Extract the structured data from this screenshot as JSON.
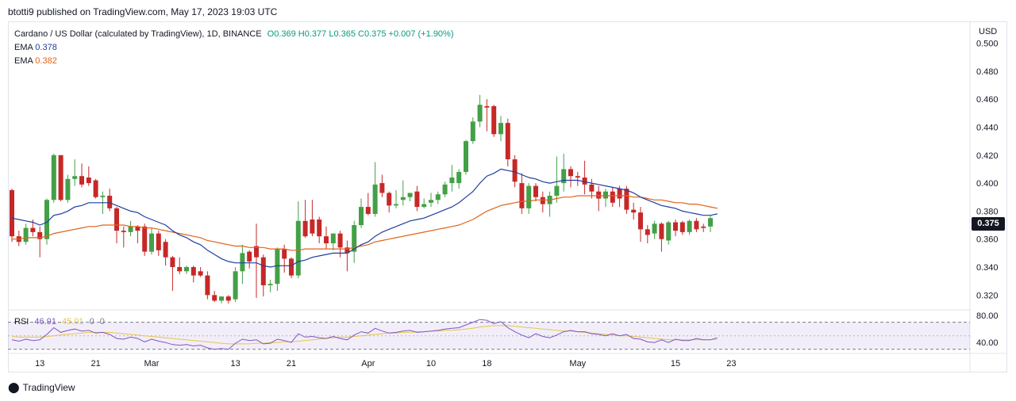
{
  "header": {
    "published": "btotti9 published on TradingView.com, May 17, 2023 19:03 UTC"
  },
  "legend": {
    "symbol": "Cardano / US Dollar (calculated by TradingView), 1D, BINANCE",
    "ohlc": "O0.369  H0.377  L0.365  C0.375  +0.007 (+1.90%)",
    "ema_fast_label": "EMA",
    "ema_fast_value": "0.378",
    "ema_slow_label": "EMA",
    "ema_slow_value": "0.382"
  },
  "rsi_legend": {
    "label": "RSI",
    "value": "46.91",
    "ma_value": "45.01",
    "zero1": "0",
    "zero2": "0"
  },
  "axis": {
    "currency": "USD",
    "last_price": "0.375"
  },
  "footer": {
    "brand": "TradingView"
  },
  "colors": {
    "up": "#26a69a",
    "up_body": "#43a047",
    "down": "#c62828",
    "ema_fast": "#1e3fa0",
    "ema_slow": "#e0641b",
    "rsi": "#7e57c2",
    "rsi_ma": "#e6c64a"
  },
  "chart_data": {
    "type": "candlestick",
    "title": "Cardano / US Dollar (calculated by TradingView), 1D, BINANCE",
    "ylim": [
      0.31,
      0.515
    ],
    "y_ticks": [
      "0.500",
      "0.480",
      "0.460",
      "0.440",
      "0.420",
      "0.400",
      "0.380",
      "0.360",
      "0.340",
      "0.320"
    ],
    "x_ticks": [
      {
        "label": "13",
        "index": 4
      },
      {
        "label": "21",
        "index": 12
      },
      {
        "label": "Mar",
        "index": 20
      },
      {
        "label": "13",
        "index": 32
      },
      {
        "label": "21",
        "index": 40
      },
      {
        "label": "Apr",
        "index": 51
      },
      {
        "label": "10",
        "index": 60
      },
      {
        "label": "18",
        "index": 68
      },
      {
        "label": "May",
        "index": 81
      },
      {
        "label": "15",
        "index": 95
      },
      {
        "label": "23",
        "index": 103
      }
    ],
    "candles": [
      {
        "o": 0.395,
        "h": 0.396,
        "l": 0.358,
        "c": 0.362
      },
      {
        "o": 0.362,
        "h": 0.366,
        "l": 0.355,
        "c": 0.358
      },
      {
        "o": 0.358,
        "h": 0.371,
        "l": 0.356,
        "c": 0.368
      },
      {
        "o": 0.368,
        "h": 0.374,
        "l": 0.362,
        "c": 0.365
      },
      {
        "o": 0.365,
        "h": 0.369,
        "l": 0.347,
        "c": 0.36
      },
      {
        "o": 0.36,
        "h": 0.389,
        "l": 0.356,
        "c": 0.388
      },
      {
        "o": 0.388,
        "h": 0.421,
        "l": 0.386,
        "c": 0.42
      },
      {
        "o": 0.42,
        "h": 0.42,
        "l": 0.387,
        "c": 0.388
      },
      {
        "o": 0.388,
        "h": 0.406,
        "l": 0.386,
        "c": 0.403
      },
      {
        "o": 0.403,
        "h": 0.417,
        "l": 0.398,
        "c": 0.405
      },
      {
        "o": 0.405,
        "h": 0.414,
        "l": 0.397,
        "c": 0.399
      },
      {
        "o": 0.404,
        "h": 0.412,
        "l": 0.398,
        "c": 0.4
      },
      {
        "o": 0.402,
        "h": 0.403,
        "l": 0.389,
        "c": 0.39
      },
      {
        "o": 0.39,
        "h": 0.394,
        "l": 0.378,
        "c": 0.391
      },
      {
        "o": 0.391,
        "h": 0.396,
        "l": 0.38,
        "c": 0.382
      },
      {
        "o": 0.382,
        "h": 0.383,
        "l": 0.357,
        "c": 0.366
      },
      {
        "o": 0.366,
        "h": 0.369,
        "l": 0.354,
        "c": 0.365
      },
      {
        "o": 0.365,
        "h": 0.373,
        "l": 0.362,
        "c": 0.369
      },
      {
        "o": 0.369,
        "h": 0.37,
        "l": 0.357,
        "c": 0.366
      },
      {
        "o": 0.369,
        "h": 0.371,
        "l": 0.348,
        "c": 0.351
      },
      {
        "o": 0.351,
        "h": 0.368,
        "l": 0.349,
        "c": 0.364
      },
      {
        "o": 0.364,
        "h": 0.366,
        "l": 0.348,
        "c": 0.352
      },
      {
        "o": 0.358,
        "h": 0.36,
        "l": 0.341,
        "c": 0.347
      },
      {
        "o": 0.347,
        "h": 0.348,
        "l": 0.323,
        "c": 0.34
      },
      {
        "o": 0.34,
        "h": 0.347,
        "l": 0.335,
        "c": 0.337
      },
      {
        "o": 0.337,
        "h": 0.341,
        "l": 0.335,
        "c": 0.34
      },
      {
        "o": 0.34,
        "h": 0.341,
        "l": 0.329,
        "c": 0.334
      },
      {
        "o": 0.337,
        "h": 0.34,
        "l": 0.333,
        "c": 0.334
      },
      {
        "o": 0.334,
        "h": 0.337,
        "l": 0.317,
        "c": 0.32
      },
      {
        "o": 0.32,
        "h": 0.323,
        "l": 0.315,
        "c": 0.316
      },
      {
        "o": 0.316,
        "h": 0.319,
        "l": 0.314,
        "c": 0.319
      },
      {
        "o": 0.319,
        "h": 0.32,
        "l": 0.314,
        "c": 0.316
      },
      {
        "o": 0.317,
        "h": 0.34,
        "l": 0.315,
        "c": 0.337
      },
      {
        "o": 0.337,
        "h": 0.356,
        "l": 0.328,
        "c": 0.35
      },
      {
        "o": 0.351,
        "h": 0.352,
        "l": 0.339,
        "c": 0.344
      },
      {
        "o": 0.355,
        "h": 0.371,
        "l": 0.318,
        "c": 0.347
      },
      {
        "o": 0.347,
        "h": 0.349,
        "l": 0.319,
        "c": 0.327
      },
      {
        "o": 0.327,
        "h": 0.331,
        "l": 0.322,
        "c": 0.328
      },
      {
        "o": 0.328,
        "h": 0.354,
        "l": 0.323,
        "c": 0.353
      },
      {
        "o": 0.353,
        "h": 0.356,
        "l": 0.336,
        "c": 0.346
      },
      {
        "o": 0.346,
        "h": 0.347,
        "l": 0.332,
        "c": 0.334
      },
      {
        "o": 0.334,
        "h": 0.387,
        "l": 0.332,
        "c": 0.373
      },
      {
        "o": 0.373,
        "h": 0.388,
        "l": 0.361,
        "c": 0.362
      },
      {
        "o": 0.374,
        "h": 0.388,
        "l": 0.362,
        "c": 0.364
      },
      {
        "o": 0.374,
        "h": 0.376,
        "l": 0.357,
        "c": 0.362
      },
      {
        "o": 0.362,
        "h": 0.369,
        "l": 0.353,
        "c": 0.357
      },
      {
        "o": 0.357,
        "h": 0.364,
        "l": 0.352,
        "c": 0.364
      },
      {
        "o": 0.364,
        "h": 0.366,
        "l": 0.347,
        "c": 0.354
      },
      {
        "o": 0.354,
        "h": 0.359,
        "l": 0.337,
        "c": 0.35
      },
      {
        "o": 0.351,
        "h": 0.373,
        "l": 0.343,
        "c": 0.37
      },
      {
        "o": 0.37,
        "h": 0.389,
        "l": 0.368,
        "c": 0.383
      },
      {
        "o": 0.383,
        "h": 0.393,
        "l": 0.377,
        "c": 0.378
      },
      {
        "o": 0.378,
        "h": 0.415,
        "l": 0.376,
        "c": 0.399
      },
      {
        "o": 0.4,
        "h": 0.406,
        "l": 0.39,
        "c": 0.393
      },
      {
        "o": 0.393,
        "h": 0.394,
        "l": 0.379,
        "c": 0.384
      },
      {
        "o": 0.384,
        "h": 0.395,
        "l": 0.382,
        "c": 0.385
      },
      {
        "o": 0.388,
        "h": 0.402,
        "l": 0.384,
        "c": 0.39
      },
      {
        "o": 0.39,
        "h": 0.393,
        "l": 0.387,
        "c": 0.393
      },
      {
        "o": 0.394,
        "h": 0.398,
        "l": 0.38,
        "c": 0.383
      },
      {
        "o": 0.383,
        "h": 0.389,
        "l": 0.382,
        "c": 0.385
      },
      {
        "o": 0.386,
        "h": 0.393,
        "l": 0.383,
        "c": 0.388
      },
      {
        "o": 0.388,
        "h": 0.394,
        "l": 0.385,
        "c": 0.392
      },
      {
        "o": 0.392,
        "h": 0.401,
        "l": 0.39,
        "c": 0.399
      },
      {
        "o": 0.4,
        "h": 0.413,
        "l": 0.394,
        "c": 0.404
      },
      {
        "o": 0.4,
        "h": 0.41,
        "l": 0.396,
        "c": 0.408
      },
      {
        "o": 0.408,
        "h": 0.431,
        "l": 0.406,
        "c": 0.43
      },
      {
        "o": 0.43,
        "h": 0.447,
        "l": 0.428,
        "c": 0.444
      },
      {
        "o": 0.444,
        "h": 0.463,
        "l": 0.44,
        "c": 0.456
      },
      {
        "o": 0.455,
        "h": 0.46,
        "l": 0.437,
        "c": 0.454
      },
      {
        "o": 0.455,
        "h": 0.456,
        "l": 0.433,
        "c": 0.435
      },
      {
        "o": 0.435,
        "h": 0.448,
        "l": 0.43,
        "c": 0.443
      },
      {
        "o": 0.443,
        "h": 0.446,
        "l": 0.412,
        "c": 0.417
      },
      {
        "o": 0.417,
        "h": 0.42,
        "l": 0.397,
        "c": 0.401
      },
      {
        "o": 0.4,
        "h": 0.407,
        "l": 0.378,
        "c": 0.382
      },
      {
        "o": 0.382,
        "h": 0.4,
        "l": 0.378,
        "c": 0.398
      },
      {
        "o": 0.398,
        "h": 0.4,
        "l": 0.387,
        "c": 0.39
      },
      {
        "o": 0.39,
        "h": 0.394,
        "l": 0.379,
        "c": 0.385
      },
      {
        "o": 0.385,
        "h": 0.394,
        "l": 0.376,
        "c": 0.391
      },
      {
        "o": 0.391,
        "h": 0.419,
        "l": 0.386,
        "c": 0.398
      },
      {
        "o": 0.4,
        "h": 0.421,
        "l": 0.394,
        "c": 0.41
      },
      {
        "o": 0.41,
        "h": 0.412,
        "l": 0.397,
        "c": 0.405
      },
      {
        "o": 0.405,
        "h": 0.408,
        "l": 0.398,
        "c": 0.404
      },
      {
        "o": 0.404,
        "h": 0.416,
        "l": 0.392,
        "c": 0.399
      },
      {
        "o": 0.399,
        "h": 0.403,
        "l": 0.389,
        "c": 0.394
      },
      {
        "o": 0.394,
        "h": 0.398,
        "l": 0.38,
        "c": 0.389
      },
      {
        "o": 0.389,
        "h": 0.396,
        "l": 0.383,
        "c": 0.394
      },
      {
        "o": 0.394,
        "h": 0.397,
        "l": 0.383,
        "c": 0.386
      },
      {
        "o": 0.396,
        "h": 0.398,
        "l": 0.383,
        "c": 0.389
      },
      {
        "o": 0.396,
        "h": 0.398,
        "l": 0.378,
        "c": 0.381
      },
      {
        "o": 0.381,
        "h": 0.386,
        "l": 0.374,
        "c": 0.379
      },
      {
        "o": 0.379,
        "h": 0.383,
        "l": 0.358,
        "c": 0.367
      },
      {
        "o": 0.367,
        "h": 0.37,
        "l": 0.357,
        "c": 0.363
      },
      {
        "o": 0.364,
        "h": 0.373,
        "l": 0.36,
        "c": 0.371
      },
      {
        "o": 0.371,
        "h": 0.372,
        "l": 0.351,
        "c": 0.36
      },
      {
        "o": 0.359,
        "h": 0.373,
        "l": 0.356,
        "c": 0.372
      },
      {
        "o": 0.372,
        "h": 0.374,
        "l": 0.362,
        "c": 0.366
      },
      {
        "o": 0.372,
        "h": 0.373,
        "l": 0.363,
        "c": 0.365
      },
      {
        "o": 0.365,
        "h": 0.374,
        "l": 0.363,
        "c": 0.373
      },
      {
        "o": 0.373,
        "h": 0.375,
        "l": 0.365,
        "c": 0.367
      },
      {
        "o": 0.369,
        "h": 0.371,
        "l": 0.365,
        "c": 0.368
      },
      {
        "o": 0.369,
        "h": 0.377,
        "l": 0.365,
        "c": 0.375
      }
    ],
    "ema_fast": [
      0.375,
      0.374,
      0.373,
      0.372,
      0.37,
      0.372,
      0.377,
      0.378,
      0.38,
      0.383,
      0.384,
      0.386,
      0.386,
      0.386,
      0.386,
      0.384,
      0.382,
      0.38,
      0.379,
      0.376,
      0.374,
      0.372,
      0.37,
      0.366,
      0.363,
      0.361,
      0.358,
      0.356,
      0.352,
      0.349,
      0.346,
      0.344,
      0.343,
      0.343,
      0.343,
      0.343,
      0.341,
      0.34,
      0.341,
      0.341,
      0.341,
      0.344,
      0.345,
      0.347,
      0.348,
      0.349,
      0.35,
      0.35,
      0.35,
      0.353,
      0.356,
      0.358,
      0.362,
      0.365,
      0.367,
      0.369,
      0.371,
      0.373,
      0.374,
      0.375,
      0.377,
      0.379,
      0.381,
      0.383,
      0.386,
      0.39,
      0.394,
      0.4,
      0.405,
      0.407,
      0.41,
      0.409,
      0.408,
      0.406,
      0.404,
      0.403,
      0.401,
      0.4,
      0.401,
      0.402,
      0.402,
      0.402,
      0.401,
      0.4,
      0.399,
      0.398,
      0.397,
      0.396,
      0.395,
      0.393,
      0.39,
      0.388,
      0.386,
      0.384,
      0.383,
      0.382,
      0.38,
      0.379,
      0.378,
      0.377,
      0.377,
      0.378
    ],
    "ema_slow": [
      0.36,
      0.36,
      0.361,
      0.361,
      0.361,
      0.362,
      0.364,
      0.365,
      0.366,
      0.367,
      0.368,
      0.369,
      0.369,
      0.37,
      0.37,
      0.37,
      0.37,
      0.369,
      0.369,
      0.368,
      0.368,
      0.367,
      0.366,
      0.365,
      0.364,
      0.363,
      0.362,
      0.361,
      0.359,
      0.358,
      0.357,
      0.356,
      0.355,
      0.355,
      0.354,
      0.354,
      0.354,
      0.353,
      0.353,
      0.353,
      0.352,
      0.352,
      0.353,
      0.353,
      0.353,
      0.353,
      0.353,
      0.353,
      0.353,
      0.354,
      0.355,
      0.356,
      0.358,
      0.359,
      0.36,
      0.361,
      0.362,
      0.363,
      0.364,
      0.365,
      0.366,
      0.367,
      0.368,
      0.369,
      0.37,
      0.372,
      0.374,
      0.377,
      0.38,
      0.382,
      0.384,
      0.385,
      0.386,
      0.387,
      0.387,
      0.388,
      0.388,
      0.388,
      0.389,
      0.39,
      0.39,
      0.391,
      0.391,
      0.391,
      0.391,
      0.391,
      0.391,
      0.391,
      0.391,
      0.39,
      0.39,
      0.389,
      0.388,
      0.388,
      0.387,
      0.386,
      0.386,
      0.385,
      0.385,
      0.384,
      0.383,
      0.382
    ],
    "rsi": {
      "upper": 70,
      "lower": 30,
      "ylim": [
        25,
        86
      ],
      "y_ticks": [
        "80.00",
        "40.00"
      ],
      "values": [
        44,
        42,
        45,
        43,
        44,
        52,
        62,
        55,
        58,
        60,
        57,
        58,
        54,
        55,
        52,
        46,
        45,
        48,
        46,
        41,
        45,
        42,
        40,
        37,
        36,
        37,
        35,
        36,
        32,
        30,
        31,
        30,
        39,
        45,
        43,
        44,
        38,
        39,
        45,
        43,
        40,
        53,
        48,
        49,
        47,
        46,
        49,
        46,
        44,
        51,
        56,
        54,
        61,
        57,
        54,
        55,
        57,
        58,
        55,
        56,
        57,
        58,
        60,
        61,
        62,
        66,
        70,
        74,
        73,
        68,
        71,
        62,
        56,
        51,
        47,
        53,
        49,
        47,
        51,
        56,
        58,
        56,
        56,
        53,
        52,
        50,
        53,
        50,
        52,
        46,
        45,
        41,
        40,
        44,
        40,
        45,
        43,
        43,
        46,
        44,
        44,
        47
      ],
      "ma": [
        49,
        48,
        48,
        48,
        48,
        49,
        50,
        51,
        52,
        53,
        54,
        55,
        55,
        55,
        55,
        54,
        53,
        52,
        51,
        50,
        49,
        48,
        47,
        46,
        45,
        44,
        43,
        42,
        41,
        40,
        39,
        38,
        38,
        38,
        38,
        39,
        39,
        40,
        40,
        41,
        41,
        42,
        43,
        44,
        45,
        46,
        47,
        48,
        48,
        49,
        50,
        51,
        52,
        53,
        54,
        54,
        55,
        55,
        56,
        56,
        57,
        57,
        58,
        58,
        59,
        60,
        61,
        63,
        64,
        65,
        65,
        65,
        64,
        63,
        62,
        61,
        60,
        59,
        58,
        57,
        57,
        56,
        55,
        54,
        53,
        52,
        51,
        50,
        50,
        49,
        48,
        47,
        46,
        45,
        44,
        44,
        44,
        44,
        44,
        44,
        44,
        45
      ]
    }
  }
}
